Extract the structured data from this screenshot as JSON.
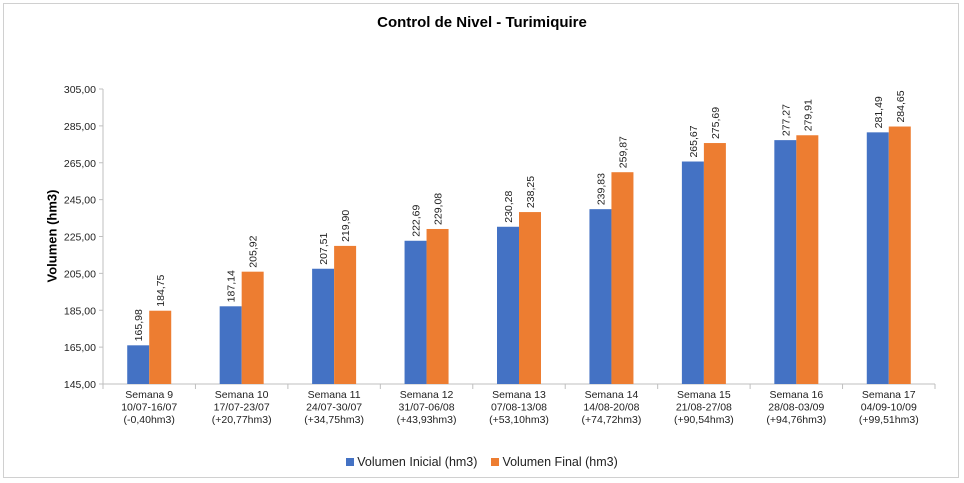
{
  "chart_data": {
    "type": "bar",
    "title": "Control de Nivel - Turimiquire",
    "xlabel": "",
    "ylabel": "Volumen (hm3)",
    "ylim": [
      145,
      305
    ],
    "yticks": [
      "145,00",
      "165,00",
      "185,00",
      "205,00",
      "225,00",
      "245,00",
      "265,00",
      "285,00",
      "305,00"
    ],
    "ytick_values": [
      145,
      165,
      185,
      205,
      225,
      245,
      265,
      285,
      305
    ],
    "grid": false,
    "legend_position": "bottom",
    "categories": [
      [
        "Semana 9",
        "10/07-16/07",
        "(-0,40hm3)"
      ],
      [
        "Semana 10",
        "17/07-23/07",
        "(+20,77hm3)"
      ],
      [
        "Semana 11",
        "24/07-30/07",
        "(+34,75hm3)"
      ],
      [
        "Semana 12",
        "31/07-06/08",
        "(+43,93hm3)"
      ],
      [
        "Semana 13",
        "07/08-13/08",
        "(+53,10hm3)"
      ],
      [
        "Semana 14",
        "14/08-20/08",
        "(+74,72hm3)"
      ],
      [
        "Semana 15",
        "21/08-27/08",
        "(+90,54hm3)"
      ],
      [
        "Semana 16",
        "28/08-03/09",
        "(+94,76hm3)"
      ],
      [
        "Semana 17",
        "04/09-10/09",
        "(+99,51hm3)"
      ]
    ],
    "series": [
      {
        "name": "Volumen Inicial (hm3)",
        "color": "#4472c4",
        "values": [
          165.98,
          187.14,
          207.51,
          222.69,
          230.28,
          239.83,
          265.67,
          277.27,
          281.49
        ],
        "labels": [
          "165,98",
          "187,14",
          "207,51",
          "222,69",
          "230,28",
          "239,83",
          "265,67",
          "277,27",
          "281,49"
        ]
      },
      {
        "name": "Volumen Final (hm3)",
        "color": "#ed7d31",
        "values": [
          184.75,
          205.92,
          219.9,
          229.08,
          238.25,
          259.87,
          275.69,
          279.91,
          284.65
        ],
        "labels": [
          "184,75",
          "205,92",
          "219,90",
          "229,08",
          "238,25",
          "259,87",
          "275,69",
          "279,91",
          "284,65"
        ]
      }
    ]
  }
}
